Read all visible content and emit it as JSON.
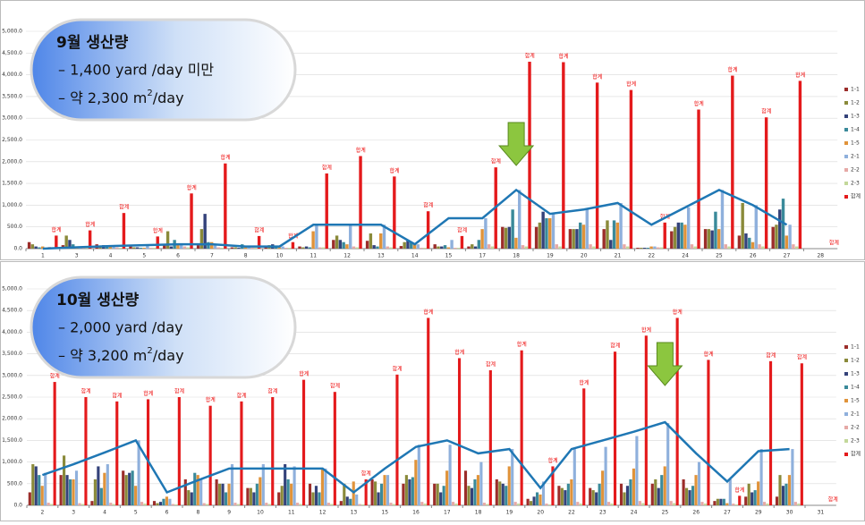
{
  "chart_data": [
    {
      "type": "bar",
      "categories": [
        "1",
        "3",
        "4",
        "5",
        "6",
        "7",
        "8",
        "10",
        "11",
        "12",
        "13",
        "14",
        "15",
        "17",
        "18",
        "19",
        "20",
        "21",
        "22",
        "24",
        "25",
        "26",
        "27",
        "28"
      ],
      "ylim": [
        0,
        5000
      ],
      "yticks": [
        {
          "value": 0,
          "label": "0.0"
        },
        {
          "value": 500,
          "label": "500.0"
        },
        {
          "value": 1000,
          "label": "1,000.0"
        },
        {
          "value": 1500,
          "label": "1,500.0"
        },
        {
          "value": 2000,
          "label": "2,000.0"
        },
        {
          "value": 2500,
          "label": "2,500.0"
        },
        {
          "value": 3000,
          "label": "3,000.0"
        },
        {
          "value": 3500,
          "label": "3,500.0"
        },
        {
          "value": 4000,
          "label": "4,000.0"
        },
        {
          "value": 4500,
          "label": "4,500.0"
        },
        {
          "value": 5000,
          "label": "5,000.0"
        }
      ],
      "grid": true,
      "legend": "right",
      "series": [
        {
          "name": "1-1",
          "color": "#9b2d2a",
          "values": [
            150,
            80,
            100,
            50,
            100,
            80,
            30,
            60,
            50,
            200,
            180,
            60,
            100,
            50,
            500,
            500,
            450,
            450,
            20,
            400,
            450,
            300,
            500,
            null
          ]
        },
        {
          "name": "1-2",
          "color": "#8a8a3a",
          "values": [
            100,
            300,
            50,
            30,
            400,
            450,
            30,
            80,
            30,
            300,
            350,
            150,
            50,
            100,
            480,
            600,
            450,
            650,
            20,
            500,
            450,
            1050,
            550,
            null
          ]
        },
        {
          "name": "1-3",
          "color": "#34427a",
          "values": [
            50,
            200,
            80,
            30,
            50,
            800,
            20,
            100,
            50,
            200,
            80,
            200,
            50,
            50,
            500,
            850,
            450,
            200,
            20,
            600,
            420,
            350,
            900,
            null
          ]
        },
        {
          "name": "1-4",
          "color": "#3a8a9a",
          "values": [
            30,
            100,
            80,
            20,
            200,
            150,
            100,
            50,
            30,
            150,
            50,
            150,
            80,
            200,
            900,
            700,
            600,
            650,
            20,
            600,
            850,
            250,
            1150,
            null
          ]
        },
        {
          "name": "1-5",
          "color": "#e0933a",
          "values": [
            50,
            50,
            50,
            20,
            100,
            150,
            30,
            30,
            400,
            100,
            350,
            100,
            30,
            450,
            250,
            700,
            550,
            600,
            50,
            550,
            450,
            150,
            300,
            null
          ]
        },
        {
          "name": "2-1",
          "color": "#8fb0dc",
          "values": [
            0,
            30,
            60,
            80,
            100,
            100,
            50,
            50,
            550,
            550,
            550,
            100,
            200,
            700,
            1350,
            800,
            900,
            1050,
            50,
            950,
            1350,
            1000,
            550,
            null
          ]
        },
        {
          "name": "2-2",
          "color": "#e6a9a6",
          "values": [
            40,
            20,
            30,
            20,
            50,
            30,
            20,
            20,
            30,
            50,
            50,
            20,
            20,
            100,
            80,
            100,
            100,
            100,
            30,
            100,
            100,
            100,
            100,
            null
          ]
        },
        {
          "name": "2-3",
          "color": "#c3d89a",
          "values": [
            20,
            20,
            20,
            20,
            30,
            20,
            20,
            20,
            30,
            30,
            30,
            20,
            20,
            50,
            50,
            50,
            50,
            50,
            30,
            50,
            50,
            50,
            50,
            null
          ]
        },
        {
          "name": "합계",
          "color": "#e41a1c",
          "values": [
            300,
            420,
            820,
            280,
            1270,
            1960,
            290,
            150,
            1730,
            2130,
            1660,
            860,
            290,
            1870,
            4300,
            4290,
            3820,
            3650,
            600,
            3200,
            3980,
            3020,
            3860,
            0
          ]
        }
      ],
      "trend": {
        "color": "#1f77b4",
        "values": [
          0,
          30,
          60,
          80,
          100,
          100,
          50,
          50,
          550,
          550,
          550,
          100,
          700,
          700,
          1350,
          800,
          900,
          1050,
          550,
          950,
          1350,
          1000,
          550,
          null
        ]
      },
      "box": {
        "title": "9월 생산량",
        "line1": "– 1,400 yard /day 미만",
        "line2": {
          "pre": "– 약 2,300 m",
          "sup": "2",
          "post": "/day"
        }
      }
    },
    {
      "type": "bar",
      "categories": [
        "2",
        "3",
        "4",
        "5",
        "6",
        "8",
        "9",
        "10",
        "11",
        "12",
        "13",
        "15",
        "16",
        "17",
        "18",
        "19",
        "20",
        "22",
        "23",
        "24",
        "25",
        "26",
        "27",
        "29",
        "30",
        "31"
      ],
      "ylim": [
        0,
        5000
      ],
      "yticks": [
        {
          "value": 0,
          "label": "0.0"
        },
        {
          "value": 500,
          "label": "500.0"
        },
        {
          "value": 1000,
          "label": "1,000.0"
        },
        {
          "value": 1500,
          "label": "1,500.0"
        },
        {
          "value": 2000,
          "label": "2,000.0"
        },
        {
          "value": 2500,
          "label": "2,500.0"
        },
        {
          "value": 3000,
          "label": "3,000.0"
        },
        {
          "value": 3500,
          "label": "3,500.0"
        },
        {
          "value": 4000,
          "label": "4,000.0"
        },
        {
          "value": 4500,
          "label": "4,500.0"
        },
        {
          "value": 5000,
          "label": "5,000.0"
        }
      ],
      "grid": true,
      "legend": "right",
      "series": [
        {
          "name": "1-1",
          "color": "#9b2d2a",
          "values": [
            300,
            700,
            100,
            800,
            100,
            600,
            600,
            400,
            300,
            500,
            100,
            600,
            500,
            500,
            800,
            600,
            150,
            450,
            400,
            500,
            500,
            600,
            100,
            200,
            200,
            null
          ]
        },
        {
          "name": "1-2",
          "color": "#8a8a3a",
          "values": [
            950,
            1150,
            600,
            700,
            50,
            350,
            500,
            400,
            450,
            300,
            500,
            550,
            700,
            500,
            450,
            550,
            100,
            400,
            350,
            300,
            600,
            400,
            150,
            500,
            700,
            null
          ]
        },
        {
          "name": "1-3",
          "color": "#34427a",
          "values": [
            900,
            700,
            900,
            750,
            80,
            300,
            500,
            300,
            950,
            450,
            200,
            300,
            600,
            300,
            400,
            500,
            200,
            350,
            300,
            450,
            400,
            350,
            150,
            300,
            450,
            null
          ]
        },
        {
          "name": "1-4",
          "color": "#3a8a9a",
          "values": [
            700,
            600,
            400,
            800,
            150,
            750,
            300,
            500,
            600,
            300,
            150,
            500,
            650,
            450,
            600,
            450,
            300,
            500,
            500,
            600,
            700,
            450,
            150,
            350,
            500,
            null
          ]
        },
        {
          "name": "1-5",
          "color": "#e0933a",
          "values": [
            450,
            600,
            750,
            450,
            200,
            700,
            500,
            650,
            500,
            850,
            550,
            700,
            1050,
            800,
            700,
            900,
            250,
            600,
            800,
            850,
            900,
            700,
            50,
            550,
            700,
            null
          ]
        },
        {
          "name": "2-1",
          "color": "#8fb0dc",
          "values": [
            750,
            800,
            950,
            1500,
            150,
            600,
            950,
            950,
            900,
            850,
            250,
            700,
            1400,
            1400,
            1000,
            1300,
            550,
            1300,
            1350,
            1600,
            1900,
            1000,
            600,
            1300,
            1300,
            null
          ]
        },
        {
          "name": "2-2",
          "color": "#e6a9a6",
          "values": [
            60,
            50,
            60,
            80,
            30,
            50,
            60,
            60,
            60,
            60,
            30,
            60,
            80,
            80,
            60,
            80,
            40,
            80,
            80,
            100,
            100,
            80,
            40,
            80,
            80,
            null
          ]
        },
        {
          "name": "2-3",
          "color": "#c3d89a",
          "values": [
            30,
            30,
            30,
            40,
            20,
            30,
            30,
            30,
            30,
            30,
            20,
            30,
            40,
            40,
            30,
            40,
            20,
            40,
            40,
            50,
            50,
            40,
            20,
            40,
            40,
            null
          ]
        },
        {
          "name": "합계",
          "color": "#e41a1c",
          "values": [
            2850,
            2500,
            2400,
            2450,
            2500,
            2300,
            2400,
            2500,
            2900,
            2620,
            600,
            3020,
            4330,
            3400,
            3120,
            3580,
            900,
            2700,
            3550,
            3920,
            4330,
            3360,
            220,
            3330,
            3280,
            0
          ]
        }
      ],
      "trend": {
        "color": "#1f77b4",
        "values": [
          700,
          950,
          1220,
          1500,
          300,
          580,
          850,
          850,
          850,
          850,
          300,
          850,
          1350,
          1500,
          1200,
          1300,
          400,
          1300,
          1500,
          1700,
          1920,
          1200,
          550,
          1250,
          1300,
          null
        ]
      },
      "box": {
        "title": "10월 생산량",
        "line1": "– 2,000 yard /day",
        "line2": {
          "pre": "– 약 3,200 m",
          "sup": "2",
          "post": "/day"
        }
      }
    }
  ]
}
